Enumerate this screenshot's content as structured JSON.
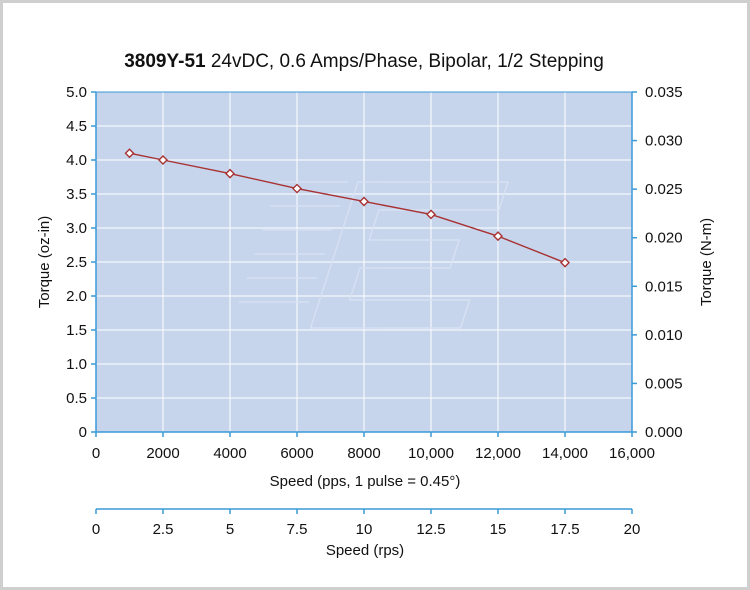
{
  "chart_data": {
    "type": "line",
    "title_bold": "3809Y-51",
    "title_rest": " 24vDC, 0.6 Amps/Phase, Bipolar, 1/2 Stepping",
    "xlabel": "Speed (pps, 1 pulse = 0.45°)",
    "ylabel": "Torque (oz-in)",
    "y2label": "Torque (N-m)",
    "x2label": "Speed (rps)",
    "xlim": [
      0,
      16000
    ],
    "ylim": [
      0,
      5.0
    ],
    "y2lim": [
      0,
      0.035
    ],
    "x2lim": [
      0,
      20
    ],
    "grid": true,
    "x_ticks": [
      "0",
      "2000",
      "4000",
      "6000",
      "8000",
      "10,000",
      "12,000",
      "14,000",
      "16,000"
    ],
    "y_ticks": [
      "0",
      "0.5",
      "1.0",
      "1.5",
      "2.0",
      "2.5",
      "3.0",
      "3.5",
      "4.0",
      "4.5",
      "5.0"
    ],
    "y2_ticks": [
      "0.000",
      "0.005",
      "0.010",
      "0.015",
      "0.020",
      "0.025",
      "0.030",
      "0.035"
    ],
    "x2_ticks": [
      "0",
      "2.5",
      "5",
      "7.5",
      "10",
      "12.5",
      "15",
      "17.5",
      "20"
    ],
    "series": [
      {
        "name": "Torque",
        "x": [
          1000,
          2000,
          4000,
          6000,
          8000,
          10000,
          12000,
          14000
        ],
        "y": [
          4.1,
          4.0,
          3.8,
          3.58,
          3.39,
          3.2,
          2.88,
          2.49
        ]
      }
    ],
    "colors": {
      "plot_bg": "#c6d4ec",
      "grid": "#ffffff",
      "axis": "#3a9ad6",
      "line": "#a83232"
    }
  }
}
